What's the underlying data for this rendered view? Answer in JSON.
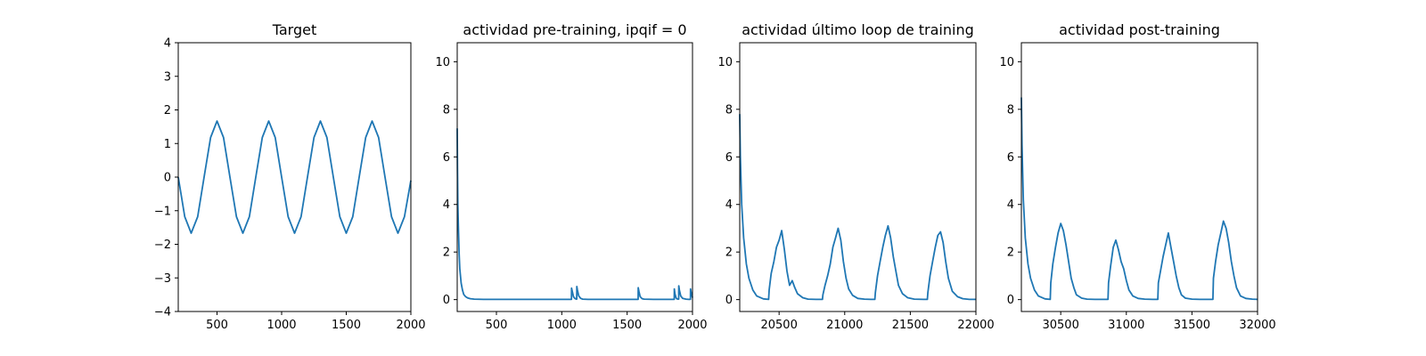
{
  "chart_data": [
    {
      "type": "line",
      "title": "Target",
      "xlim": [
        200,
        2000
      ],
      "ylim": [
        -4,
        4
      ],
      "xticks": [
        500,
        1000,
        1500,
        2000
      ],
      "xtick_labels": [
        "500",
        "1000",
        "1500",
        "2000"
      ],
      "yticks": [
        -4,
        -3,
        -2,
        -1,
        0,
        1,
        2,
        3,
        4
      ],
      "ytick_labels": [
        "−4",
        "−3",
        "−2",
        "−1",
        "0",
        "1",
        "2",
        "3",
        "4"
      ],
      "color": "#1f77b4",
      "series": [
        {
          "x": [
            200,
            250,
            300,
            350,
            400,
            450,
            500,
            550,
            600,
            650,
            700,
            750,
            800,
            850,
            900,
            950,
            1000,
            1050,
            1100,
            1150,
            1200,
            1250,
            1300,
            1350,
            1400,
            1450,
            1500,
            1550,
            1600,
            1650,
            1700,
            1750,
            1800,
            1850,
            1900,
            1950,
            2000
          ],
          "y": [
            0.0,
            -1.18,
            -1.67,
            -1.18,
            0.0,
            1.18,
            1.67,
            1.18,
            0.0,
            -1.18,
            -1.67,
            -1.18,
            0.0,
            1.18,
            1.67,
            1.18,
            0.0,
            -1.18,
            -1.67,
            -1.18,
            0.0,
            1.18,
            1.67,
            1.18,
            0.0,
            -1.18,
            -1.67,
            -1.18,
            0.0,
            1.18,
            1.67,
            1.18,
            0.0,
            -1.18,
            -1.67,
            -1.18,
            -0.1
          ]
        }
      ]
    },
    {
      "type": "line",
      "title": "actividad pre-training, ipqif = 0",
      "xlim": [
        200,
        2000
      ],
      "ylim": [
        -0.5,
        10.8
      ],
      "xticks": [
        500,
        1000,
        1500,
        2000
      ],
      "xtick_labels": [
        "500",
        "1000",
        "1500",
        "2000"
      ],
      "yticks": [
        0,
        2,
        4,
        6,
        8,
        10
      ],
      "ytick_labels": [
        "0",
        "2",
        "4",
        "6",
        "8",
        "10"
      ],
      "color": "#1f77b4",
      "series": [
        {
          "x": [
            200,
            202,
            205,
            210,
            215,
            220,
            230,
            240,
            250,
            265,
            280,
            300,
            330,
            400,
            600,
            800,
            1000,
            1070,
            1074,
            1075,
            1080,
            1090,
            1100,
            1110,
            1114,
            1115,
            1120,
            1130,
            1145,
            1160,
            1200,
            1400,
            1580,
            1584,
            1585,
            1590,
            1600,
            1615,
            1630,
            1700,
            1850,
            1860,
            1861,
            1866,
            1874,
            1880,
            1890,
            1894,
            1895,
            1900,
            1910,
            1925,
            1950,
            1970,
            1984,
            1985,
            1990,
            2000
          ],
          "y": [
            7.2,
            5.5,
            4.0,
            2.8,
            1.9,
            1.3,
            0.7,
            0.4,
            0.22,
            0.12,
            0.07,
            0.04,
            0.02,
            0.01,
            0.01,
            0.01,
            0.01,
            0.01,
            0.01,
            0.48,
            0.35,
            0.12,
            0.05,
            0.02,
            0.02,
            0.55,
            0.4,
            0.15,
            0.05,
            0.02,
            0.01,
            0.01,
            0.01,
            0.01,
            0.5,
            0.35,
            0.12,
            0.04,
            0.02,
            0.01,
            0.01,
            0.01,
            0.45,
            0.25,
            0.08,
            0.03,
            0.02,
            0.02,
            0.58,
            0.4,
            0.15,
            0.05,
            0.02,
            0.01,
            0.01,
            0.45,
            0.3,
            0.08
          ]
        }
      ]
    },
    {
      "type": "line",
      "title": "actividad último loop de training",
      "xlim": [
        20200,
        22000
      ],
      "ylim": [
        -0.5,
        10.8
      ],
      "xticks": [
        20500,
        21000,
        21500,
        22000
      ],
      "xtick_labels": [
        "20500",
        "21000",
        "21500",
        "22000"
      ],
      "yticks": [
        0,
        2,
        4,
        6,
        8,
        10
      ],
      "ytick_labels": [
        "0",
        "2",
        "4",
        "6",
        "8",
        "10"
      ],
      "color": "#1f77b4",
      "series": [
        {
          "x": [
            20200,
            20205,
            20215,
            20230,
            20250,
            20270,
            20300,
            20330,
            20380,
            20420,
            20424,
            20440,
            20460,
            20480,
            20500,
            20520,
            20540,
            20560,
            20580,
            20600,
            20620,
            20640,
            20680,
            20720,
            20780,
            20830,
            20834,
            20850,
            20870,
            20890,
            20910,
            20930,
            20950,
            20970,
            20990,
            21010,
            21030,
            21060,
            21100,
            21150,
            21200,
            21230,
            21234,
            21250,
            21270,
            21290,
            21310,
            21330,
            21350,
            21370,
            21390,
            21410,
            21440,
            21480,
            21530,
            21600,
            21630,
            21634,
            21650,
            21670,
            21690,
            21710,
            21730,
            21750,
            21770,
            21790,
            21820,
            21860,
            21900,
            21950,
            22000
          ],
          "y": [
            7.8,
            6.0,
            4.0,
            2.6,
            1.5,
            0.9,
            0.4,
            0.15,
            0.03,
            0.01,
            0.4,
            1.1,
            1.6,
            2.2,
            2.5,
            2.9,
            2.1,
            1.2,
            0.6,
            0.8,
            0.5,
            0.25,
            0.08,
            0.02,
            0.01,
            0.01,
            0.2,
            0.6,
            1.0,
            1.5,
            2.2,
            2.6,
            3.0,
            2.5,
            1.6,
            0.9,
            0.45,
            0.18,
            0.05,
            0.02,
            0.01,
            0.01,
            0.3,
            1.0,
            1.6,
            2.2,
            2.7,
            3.1,
            2.6,
            1.8,
            1.2,
            0.6,
            0.25,
            0.08,
            0.02,
            0.01,
            0.01,
            0.3,
            1.0,
            1.6,
            2.2,
            2.7,
            2.85,
            2.4,
            1.6,
            0.9,
            0.35,
            0.12,
            0.04,
            0.01,
            0.01
          ]
        }
      ]
    },
    {
      "type": "line",
      "title": "actividad post-training",
      "xlim": [
        30200,
        32000
      ],
      "ylim": [
        -0.5,
        10.8
      ],
      "xticks": [
        30500,
        31000,
        31500,
        32000
      ],
      "xtick_labels": [
        "30500",
        "31000",
        "31500",
        "32000"
      ],
      "yticks": [
        0,
        2,
        4,
        6,
        8,
        10
      ],
      "ytick_labels": [
        "0",
        "2",
        "4",
        "6",
        "8",
        "10"
      ],
      "color": "#1f77b4",
      "series": [
        {
          "x": [
            30200,
            30205,
            30215,
            30230,
            30250,
            30270,
            30300,
            30330,
            30380,
            30420,
            30424,
            30440,
            30460,
            30480,
            30500,
            30520,
            30540,
            30560,
            30580,
            30600,
            30620,
            30660,
            30700,
            30760,
            30820,
            30860,
            30864,
            30880,
            30900,
            30920,
            30940,
            30960,
            30980,
            31000,
            31020,
            31050,
            31090,
            31140,
            31200,
            31240,
            31244,
            31260,
            31280,
            31300,
            31320,
            31340,
            31360,
            31380,
            31400,
            31420,
            31450,
            31500,
            31560,
            31620,
            31660,
            31664,
            31680,
            31700,
            31720,
            31740,
            31760,
            31780,
            31800,
            31820,
            31840,
            31870,
            31910,
            31960,
            32000
          ],
          "y": [
            8.5,
            6.5,
            4.2,
            2.6,
            1.5,
            0.9,
            0.4,
            0.15,
            0.03,
            0.01,
            0.7,
            1.5,
            2.2,
            2.8,
            3.2,
            2.9,
            2.3,
            1.6,
            0.9,
            0.5,
            0.2,
            0.06,
            0.02,
            0.01,
            0.01,
            0.01,
            0.7,
            1.4,
            2.2,
            2.5,
            2.1,
            1.6,
            1.3,
            0.8,
            0.4,
            0.15,
            0.05,
            0.02,
            0.01,
            0.01,
            0.7,
            1.2,
            1.8,
            2.3,
            2.8,
            2.2,
            1.6,
            1.0,
            0.5,
            0.2,
            0.06,
            0.02,
            0.01,
            0.01,
            0.01,
            0.9,
            1.6,
            2.3,
            2.8,
            3.3,
            3.0,
            2.4,
            1.6,
            1.0,
            0.5,
            0.15,
            0.05,
            0.02,
            0.01
          ]
        }
      ]
    }
  ]
}
